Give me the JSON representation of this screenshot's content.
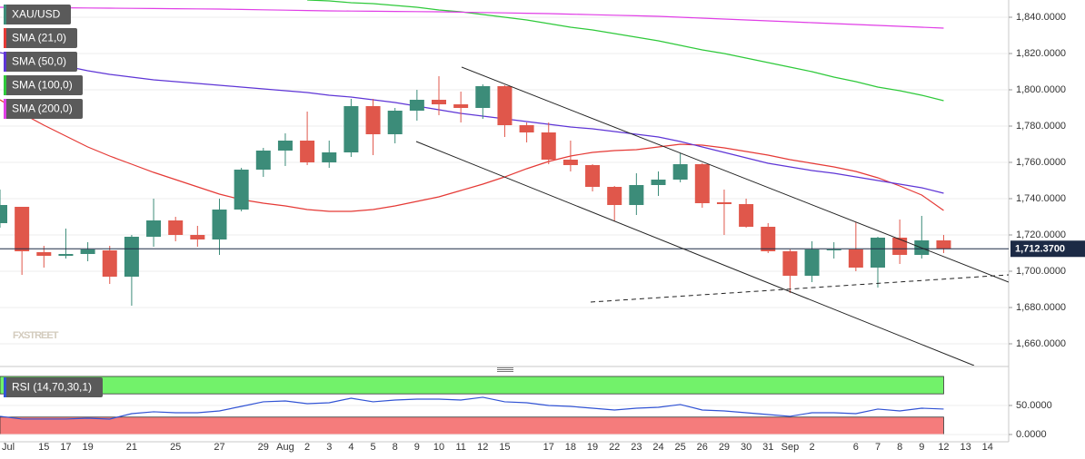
{
  "chart_data": [
    {
      "type": "candlestick",
      "name": "XAU/USD",
      "watermark": "FXSTREET",
      "categories": [
        "Jul",
        null,
        "15",
        "17",
        "19",
        null,
        "21",
        null,
        "25",
        null,
        "27",
        null,
        "29",
        "Aug",
        "2",
        "3",
        "4",
        "5",
        "8",
        "9",
        "10",
        "11",
        "12",
        "15",
        null,
        "17",
        "18",
        "19",
        "22",
        "23",
        "24",
        "25",
        "26",
        "29",
        "30",
        "31",
        "Sep",
        "2",
        null,
        "6",
        "7",
        "8",
        "9",
        "12",
        "13",
        "14"
      ],
      "open": [
        1726.5,
        1735.5,
        1710.5,
        1708.5,
        1709.5,
        1711.5,
        1697,
        1719,
        1728,
        1720,
        1717.5,
        1734,
        1756,
        1766.5,
        1772,
        1760,
        1765.5,
        1791,
        1775.5,
        1788.5,
        1794.5,
        1792,
        1790,
        1802,
        1780.5,
        1776.5,
        1761.5,
        1758.5,
        1746.5,
        1736.5,
        1747.5,
        1750.5,
        1759,
        1738,
        1737,
        1724.5,
        1711,
        1697.5,
        1711.5,
        1712,
        1702,
        1718.5,
        1709,
        1717,
        null,
        null
      ],
      "high": [
        1745,
        1735.5,
        1714,
        1723.5,
        1716,
        1714,
        1720,
        1740,
        1730,
        1725,
        1740,
        1757,
        1768,
        1776,
        1788,
        1772,
        1795,
        1795,
        1790,
        1800,
        1807.5,
        1799,
        1803,
        1802.5,
        1782,
        1782,
        1772,
        1759,
        1747,
        1754,
        1755,
        1765,
        1759.5,
        1745,
        1740,
        1726.5,
        1712,
        1716.5,
        1716,
        1727,
        1719,
        1728.5,
        1730.5,
        1720,
        null,
        null
      ],
      "low": [
        1724,
        1698,
        1702,
        1707,
        1705.5,
        1693,
        1681,
        1713.5,
        1716.5,
        1713.5,
        1709,
        1733,
        1752,
        1758,
        1758.5,
        1757,
        1763,
        1764,
        1770.5,
        1783,
        1786,
        1782,
        1784,
        1774,
        1771,
        1759,
        1755,
        1744,
        1727.5,
        1731,
        1741.5,
        1749,
        1735,
        1720,
        1724,
        1710,
        1688,
        1694,
        1707,
        1700,
        1691,
        1704,
        1707,
        1710,
        null,
        null
      ],
      "close": [
        1736.5,
        1711,
        1708.5,
        1709.5,
        1712,
        1697,
        1719,
        1728,
        1720,
        1717.5,
        1734,
        1756,
        1766.5,
        1772,
        1760,
        1765.5,
        1791,
        1775.5,
        1788.5,
        1794.5,
        1792,
        1790,
        1802,
        1780.5,
        1776.5,
        1761.5,
        1758.5,
        1746.5,
        1736.5,
        1747.5,
        1750.5,
        1759,
        1737.5,
        1737,
        1724.5,
        1711,
        1697.5,
        1712,
        1712,
        1702,
        1718.5,
        1709,
        1717,
        1712.37,
        null,
        null
      ],
      "up_color": "#3c8c79",
      "down_color": "#e0574b",
      "series": [
        {
          "name": "SMA (21,0)",
          "color": "#e53935",
          "values": [
            1794.5,
            1787,
            1780.5,
            1774.5,
            1768.5,
            1763.5,
            1759,
            1754.5,
            1750.5,
            1746.5,
            1742.5,
            1739.5,
            1737.5,
            1736,
            1734,
            1733,
            1733,
            1734,
            1736,
            1738.5,
            1741,
            1744.5,
            1748,
            1752,
            1756.5,
            1760.5,
            1763.5,
            1765.5,
            1766.5,
            1767,
            1768.5,
            1770,
            1769.5,
            1768,
            1766,
            1764,
            1761.5,
            1759.5,
            1757.5,
            1755,
            1751.5,
            1747,
            1742,
            1733.5,
            null,
            null
          ]
        },
        {
          "name": "SMA (50,0)",
          "color": "#5e35d6",
          "values": [
            1820.5,
            1818,
            1815.5,
            1813,
            1810.5,
            1808.5,
            1807,
            1805.5,
            1804.5,
            1803.5,
            1802.5,
            1801.5,
            1800.5,
            1799.5,
            1798.5,
            1797,
            1796,
            1794.5,
            1793,
            1791,
            1789,
            1787,
            1785.5,
            1784,
            1782.5,
            1781,
            1779.5,
            1778.5,
            1777,
            1775.5,
            1774,
            1771.5,
            1768.5,
            1765.5,
            1762.5,
            1759.5,
            1757.5,
            1755.5,
            1754,
            1752,
            1750,
            1748,
            1746,
            1743,
            null,
            null
          ]
        },
        {
          "name": "SMA (100,0)",
          "color": "#2ec93a",
          "values": [
            null,
            null,
            null,
            null,
            null,
            null,
            null,
            null,
            null,
            null,
            null,
            null,
            null,
            null,
            1849.5,
            1849,
            1848,
            1847.5,
            1846.5,
            1845.5,
            1844,
            1843,
            1841.5,
            1840,
            1838.5,
            1836.5,
            1834.5,
            1833,
            1831,
            1829,
            1827,
            1824.5,
            1822,
            1820,
            1817.5,
            1815,
            1812.5,
            1810,
            1807,
            1804.5,
            1801.5,
            1799.5,
            1797,
            1794,
            null,
            null
          ]
        },
        {
          "name": "SMA (200,0)",
          "color": "#e03ee6",
          "values": [
            1845.5,
            1845.4,
            1845.3,
            1845.2,
            1845.1,
            1845,
            1844.9,
            1844.8,
            1844.7,
            1844.6,
            1844.5,
            1844.3,
            1844.1,
            1843.9,
            1843.7,
            1843.5,
            1843.4,
            1843.3,
            1843.2,
            1843.1,
            1843,
            1842.8,
            1842.6,
            1842.4,
            1842.2,
            1842,
            1841.7,
            1841.4,
            1841.1,
            1840.8,
            1840.5,
            1840,
            1839.5,
            1839,
            1838.5,
            1838,
            1837.5,
            1837,
            1836.5,
            1836,
            1835.5,
            1835,
            1834.5,
            1834,
            null,
            null
          ]
        }
      ],
      "last_price": {
        "value": 1712.37,
        "label": "1,712.3700"
      },
      "ylim": [
        1648,
        1849.5
      ],
      "yticks": [
        {
          "value": 1660,
          "label": "1,660.0000"
        },
        {
          "value": 1680,
          "label": "1,680.0000"
        },
        {
          "value": 1700,
          "label": "1,700.0000"
        },
        {
          "value": 1720,
          "label": "1,720.0000"
        },
        {
          "value": 1740,
          "label": "1,740.0000"
        },
        {
          "value": 1760,
          "label": "1,760.0000"
        },
        {
          "value": 1780,
          "label": "1,780.0000"
        },
        {
          "value": 1800,
          "label": "1,800.0000"
        },
        {
          "value": 1820,
          "label": "1,820.0000"
        },
        {
          "value": 1840,
          "label": "1,840.0000"
        }
      ],
      "grid": true
    },
    {
      "type": "line",
      "series": [
        {
          "name": "RSI (14,70,30,1)",
          "color": "#3153d4",
          "values": [
            31.3,
            26.6,
            26.6,
            26.6,
            28.1,
            26.6,
            35.9,
            39.1,
            37.5,
            37.5,
            40.6,
            48.4,
            56.3,
            57.8,
            53.1,
            54.7,
            62.5,
            56.3,
            59.4,
            60.9,
            60.9,
            59.4,
            64.1,
            56.3,
            54.7,
            50,
            48.4,
            45.3,
            42.2,
            45.3,
            46.9,
            51.6,
            42.2,
            40.6,
            37.5,
            34.4,
            31.3,
            37.5,
            37.5,
            35.9,
            43.8,
            40.6,
            45.3,
            43.8,
            null,
            null
          ]
        }
      ],
      "bands": [
        {
          "range": [
            70,
            100
          ],
          "color": "#72f26a"
        },
        {
          "range": [
            0,
            30
          ],
          "color": "#f57c7c"
        }
      ],
      "ylim": [
        -9.4,
        103.1
      ],
      "yticks": [
        {
          "value": 0,
          "label": "0.0000"
        },
        {
          "value": 50,
          "label": "50.0000"
        }
      ],
      "grid": true
    }
  ]
}
